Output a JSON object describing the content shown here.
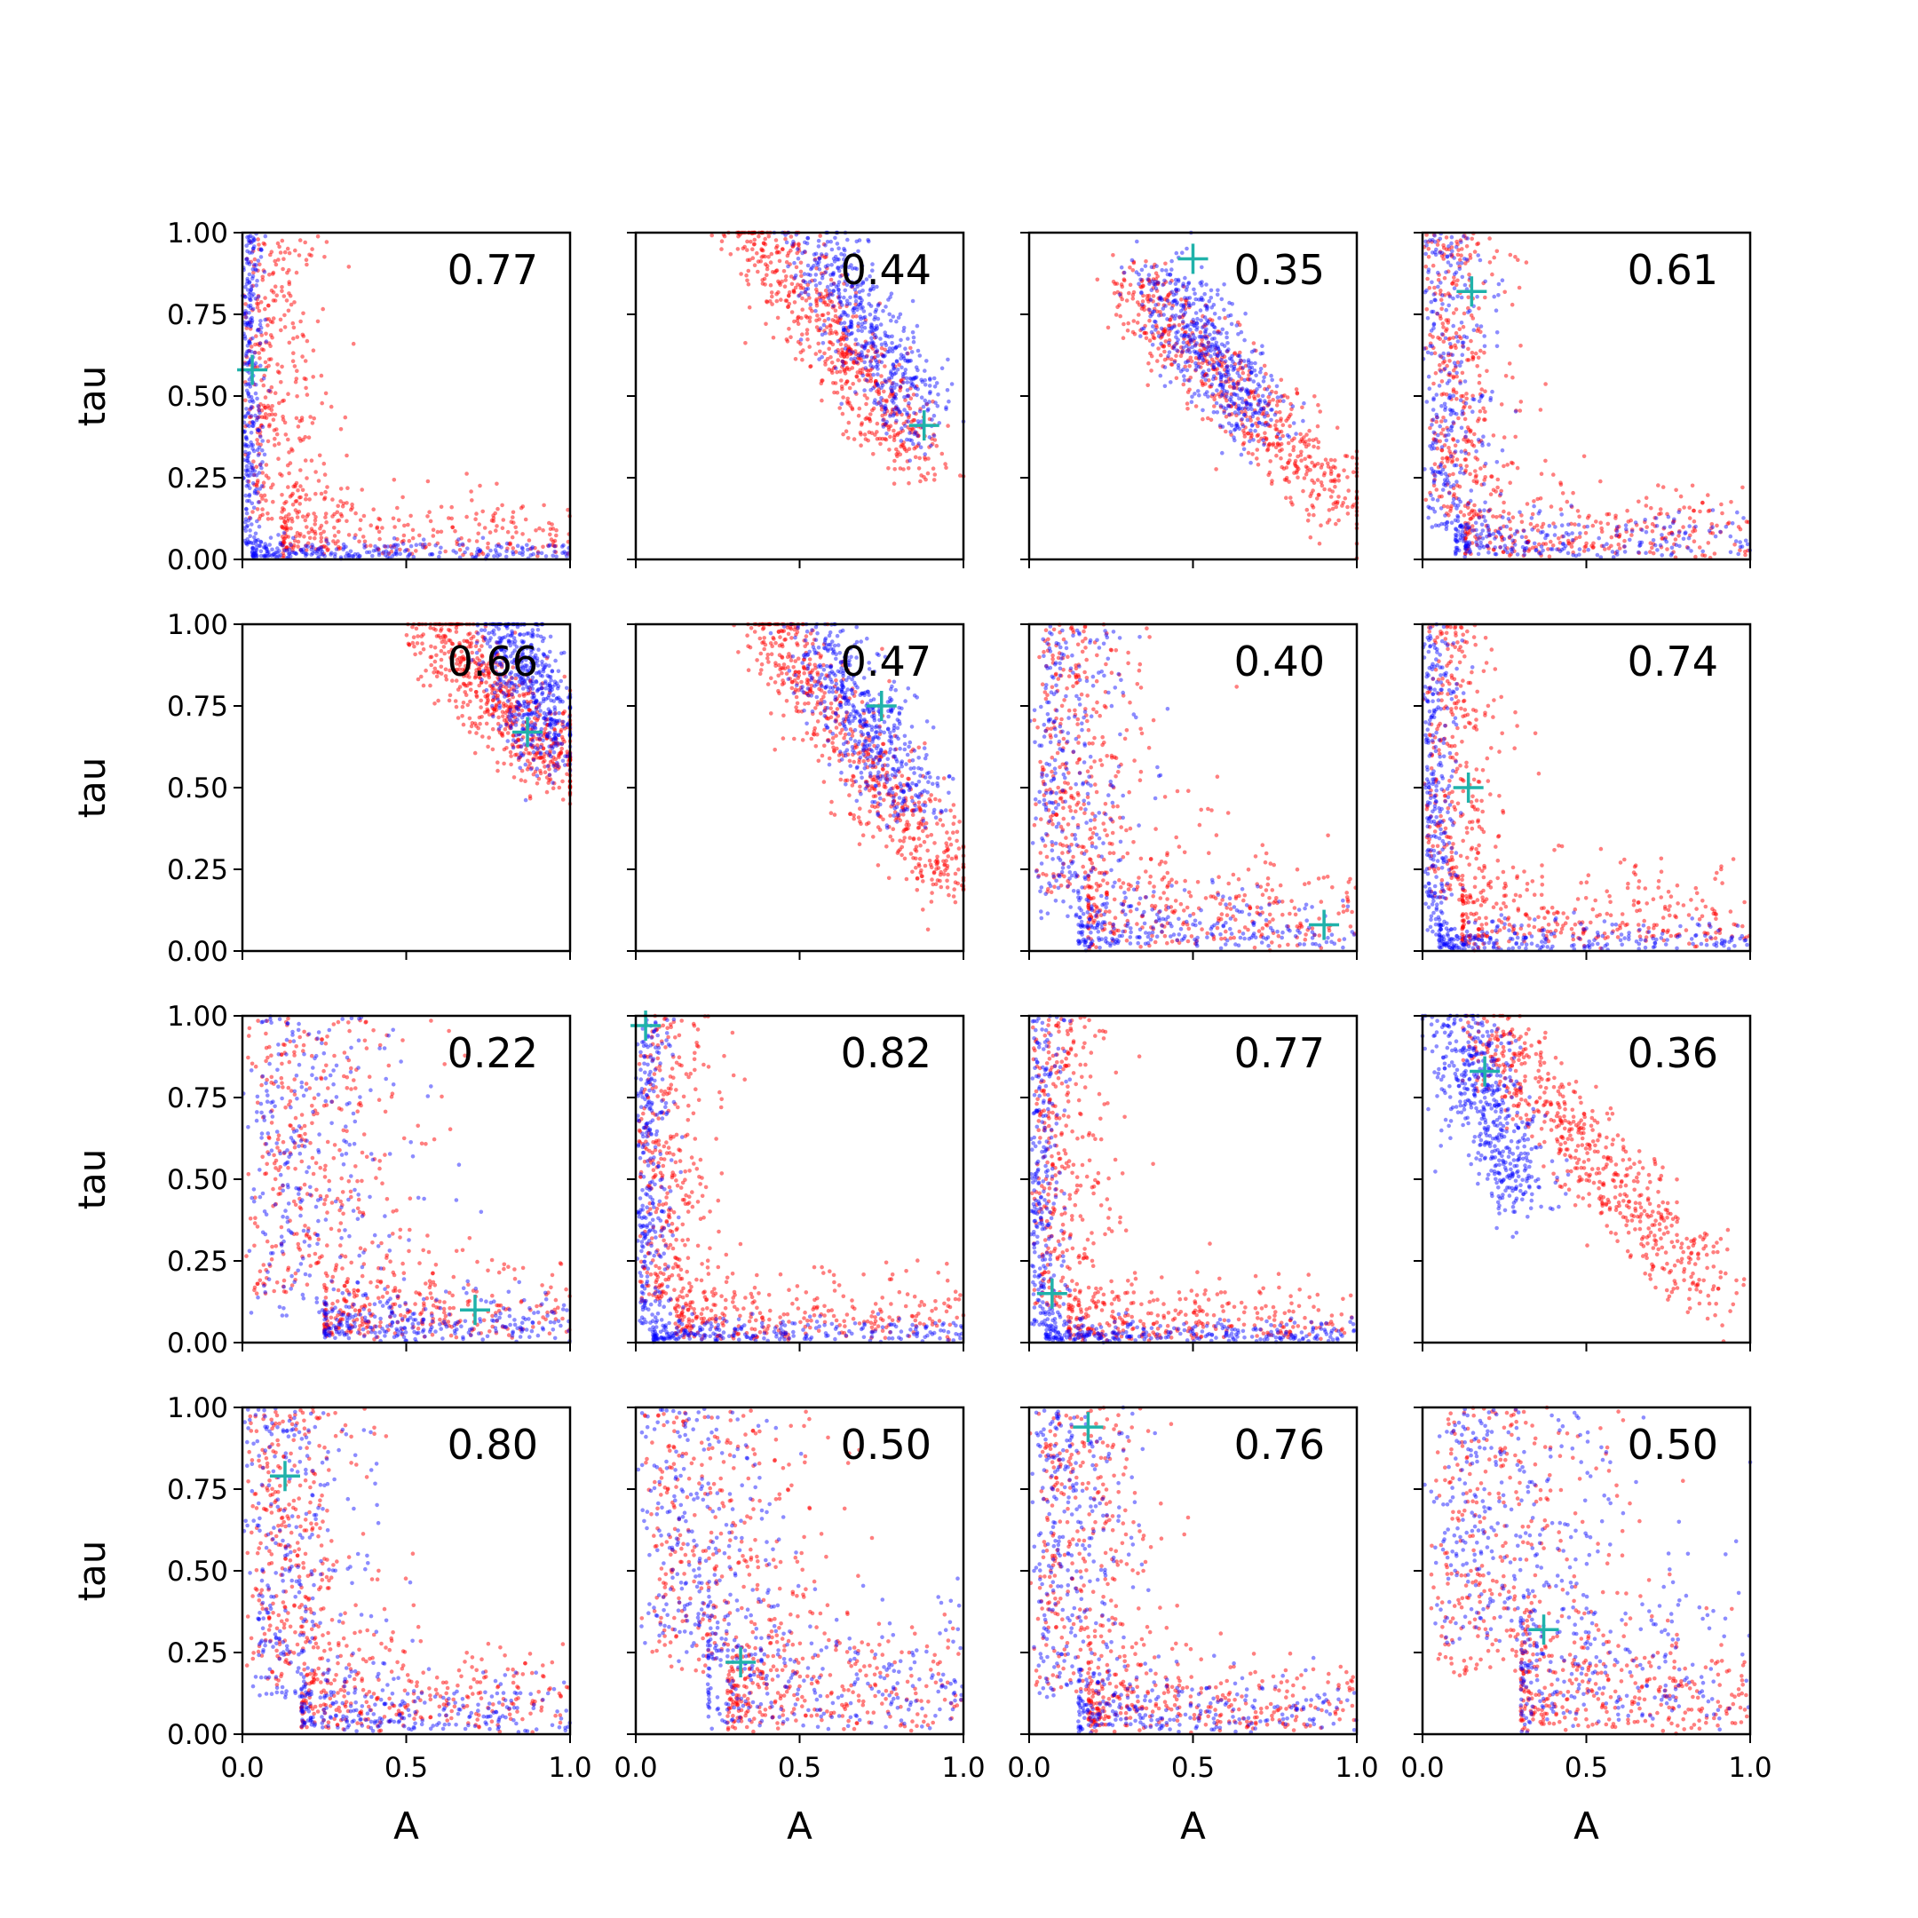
{
  "chart_data": {
    "type": "scatter",
    "grid": {
      "rows": 4,
      "cols": 4
    },
    "xlabel": "A",
    "ylabel": "tau",
    "xlim": [
      0,
      1
    ],
    "ylim": [
      0,
      1
    ],
    "xticks": [
      "0.0",
      "0.5",
      "1.0"
    ],
    "yticks": [
      "0.00",
      "0.25",
      "0.50",
      "0.75",
      "1.00"
    ],
    "colors": {
      "series_a": "#0000ff",
      "series_b": "#ff0000",
      "marker": "#20b2aa"
    },
    "panels": [
      {
        "label": "0.77",
        "truth": [
          0.03,
          0.58
        ],
        "blue_shape": "L",
        "blue_knee": [
          0.03,
          0.03
        ],
        "red_shape": "L",
        "red_knee": [
          0.12,
          0.12
        ]
      },
      {
        "label": "0.44",
        "truth": [
          0.88,
          0.41
        ],
        "blue_shape": "band",
        "blue_from": [
          0.55,
          0.95
        ],
        "blue_to": [
          0.88,
          0.42
        ],
        "red_from": [
          0.35,
          1.02
        ],
        "red_to": [
          0.88,
          0.3
        ]
      },
      {
        "label": "0.35",
        "truth": [
          0.5,
          0.92
        ],
        "blue_shape": "band",
        "blue_from": [
          0.4,
          0.85
        ],
        "blue_to": [
          0.7,
          0.42
        ],
        "red_from": [
          0.3,
          0.85
        ],
        "red_to": [
          0.98,
          0.15
        ]
      },
      {
        "label": "0.61",
        "truth": [
          0.15,
          0.82
        ],
        "blue_shape": "L",
        "blue_knee": [
          0.1,
          0.08
        ],
        "red_shape": "L",
        "red_knee": [
          0.13,
          0.12
        ]
      },
      {
        "label": "0.66",
        "truth": [
          0.87,
          0.67
        ],
        "blue_shape": "band",
        "blue_from": [
          0.8,
          1.0
        ],
        "blue_to": [
          0.95,
          0.62
        ],
        "red_from": [
          0.6,
          0.98
        ],
        "red_to": [
          0.98,
          0.55
        ]
      },
      {
        "label": "0.47",
        "truth": [
          0.75,
          0.75
        ],
        "blue_shape": "band",
        "blue_from": [
          0.55,
          0.95
        ],
        "blue_to": [
          0.85,
          0.45
        ],
        "red_from": [
          0.4,
          1.0
        ],
        "red_to": [
          0.97,
          0.2
        ]
      },
      {
        "label": "0.40",
        "truth": [
          0.9,
          0.08
        ],
        "blue_shape": "L",
        "blue_knee": [
          0.15,
          0.1
        ],
        "red_shape": "L",
        "red_knee": [
          0.18,
          0.18
        ]
      },
      {
        "label": "0.74",
        "truth": [
          0.14,
          0.5
        ],
        "blue_shape": "L",
        "blue_knee": [
          0.05,
          0.05
        ],
        "red_shape": "L",
        "red_knee": [
          0.12,
          0.14
        ]
      },
      {
        "label": "0.22",
        "truth": [
          0.71,
          0.1
        ],
        "blue_shape": "L",
        "blue_knee": [
          0.25,
          0.08
        ],
        "red_shape": "L",
        "red_knee": [
          0.25,
          0.14
        ]
      },
      {
        "label": "0.82",
        "truth": [
          0.03,
          0.97
        ],
        "blue_shape": "L",
        "blue_knee": [
          0.05,
          0.04
        ],
        "red_shape": "L",
        "red_knee": [
          0.12,
          0.12
        ]
      },
      {
        "label": "0.77",
        "truth": [
          0.07,
          0.15
        ],
        "blue_shape": "L",
        "blue_knee": [
          0.05,
          0.04
        ],
        "red_shape": "L",
        "red_knee": [
          0.12,
          0.1
        ]
      },
      {
        "label": "0.36",
        "truth": [
          0.19,
          0.83
        ],
        "blue_shape": "band",
        "blue_from": [
          0.1,
          0.98
        ],
        "blue_to": [
          0.3,
          0.45
        ],
        "red_from": [
          0.18,
          0.95
        ],
        "red_to": [
          0.88,
          0.15
        ]
      },
      {
        "label": "0.80",
        "truth": [
          0.13,
          0.79
        ],
        "blue_shape": "L",
        "blue_knee": [
          0.18,
          0.1
        ],
        "red_shape": "L",
        "red_knee": [
          0.18,
          0.15
        ]
      },
      {
        "label": "0.50",
        "truth": [
          0.32,
          0.22
        ],
        "blue_shape": "L",
        "blue_knee": [
          0.22,
          0.22
        ],
        "red_shape": "L",
        "red_knee": [
          0.28,
          0.18
        ]
      },
      {
        "label": "0.76",
        "truth": [
          0.18,
          0.94
        ],
        "blue_shape": "L",
        "blue_knee": [
          0.15,
          0.1
        ],
        "red_shape": "L",
        "red_knee": [
          0.18,
          0.13
        ]
      },
      {
        "label": "0.50",
        "truth": [
          0.37,
          0.32
        ],
        "blue_shape": "L",
        "blue_knee": [
          0.3,
          0.28
        ],
        "red_shape": "L",
        "red_knee": [
          0.3,
          0.18
        ]
      }
    ]
  }
}
